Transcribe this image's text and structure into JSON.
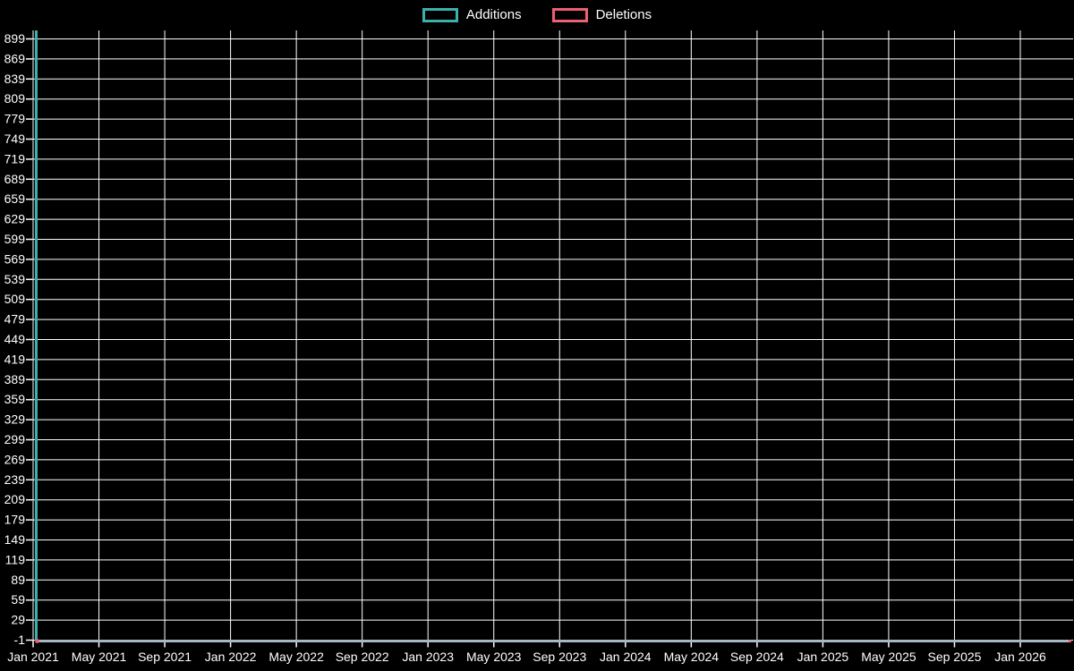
{
  "page": {
    "background": "#000000",
    "description": "Repository code-frequency line chart on black background"
  },
  "chart_data": {
    "type": "line",
    "title": "",
    "legend_position": "top-center",
    "background": "#000000",
    "grid": true,
    "grid_color": "#ffffff",
    "text_color": "#ffffff",
    "axis_tick_font_px": 14,
    "x_tick_labels": [
      "Jan 2021",
      "May 2021",
      "Sep 2021",
      "Jan 2022",
      "May 2022",
      "Sep 2022",
      "Jan 2023",
      "May 2023",
      "Sep 2023",
      "Jan 2024",
      "May 2024",
      "Sep 2024",
      "Jan 2025",
      "May 2025",
      "Sep 2025",
      "Jan 2026"
    ],
    "y_axis": {
      "min": -1,
      "max": 899,
      "tick_step": 30,
      "tick_labels": [
        "-1",
        "29",
        "59",
        "89",
        "119",
        "149",
        "179",
        "209",
        "239",
        "269",
        "299",
        "329",
        "359",
        "389",
        "419",
        "449",
        "479",
        "509",
        "539",
        "569",
        "599",
        "629",
        "659",
        "689",
        "719",
        "749",
        "779",
        "809",
        "839",
        "869",
        "899"
      ]
    },
    "series": [
      {
        "name": "Additions",
        "color": "#3cb1ab",
        "points": [
          {
            "x": "Jan 2021 (first week)",
            "y": 910
          }
        ],
        "rest_value": 0,
        "data_summary": "Single vertical spike of about 910 at the first week of Jan 2021, value 0 for every following week through Jan 2026"
      },
      {
        "name": "Deletions",
        "color": "#ee5f73",
        "points": [
          {
            "x": "Jan 2021 (first week)",
            "y": 0
          }
        ],
        "rest_value": 0,
        "data_summary": "Approximately 0 for every week from Jan 2021 through Jan 2026 (small red point marker at origin and at right end of flat line)"
      }
    ],
    "zero_flatline_color": "#a6b8c2"
  }
}
